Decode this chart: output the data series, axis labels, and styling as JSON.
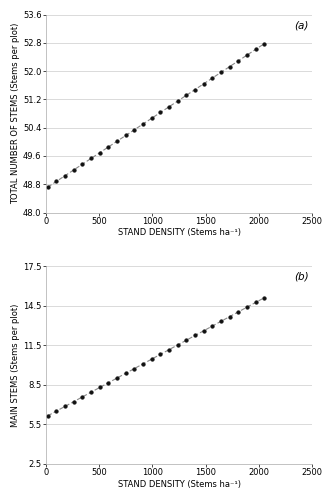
{
  "panel_a": {
    "label": "(a)",
    "x_min": 0,
    "x_max": 2500,
    "y_min": 48.0,
    "y_max": 53.6,
    "y_ticks": [
      48.0,
      48.8,
      49.6,
      50.4,
      51.2,
      52.0,
      52.8,
      53.6
    ],
    "x_ticks": [
      0,
      500,
      1000,
      1500,
      2000,
      2500
    ],
    "xlabel": "STAND DENSITY (Stems ha⁻¹)",
    "ylabel": "TOTAL NUMBER OF STEMS (Stems per plot)",
    "data_x_start": 20,
    "data_x_end": 2050,
    "data_y_start": 48.72,
    "data_y_end": 52.78,
    "n_points": 26
  },
  "panel_b": {
    "label": "(b)",
    "x_min": 0,
    "x_max": 2500,
    "y_min": 2.5,
    "y_max": 17.5,
    "y_ticks": [
      2.5,
      5.5,
      8.5,
      11.5,
      14.5,
      17.5
    ],
    "x_ticks": [
      0,
      500,
      1000,
      1500,
      2000,
      2500
    ],
    "xlabel": "STAND DENSITY (Stems ha⁻¹)",
    "ylabel": "MAIN STEMS (Stems per plot)",
    "data_x_start": 20,
    "data_x_end": 2050,
    "data_y_start": 6.15,
    "data_y_end": 15.1,
    "n_points": 26
  },
  "line_color": "#888888",
  "marker_color": "#111111",
  "bg_color": "#ffffff",
  "grid_color": "#cccccc",
  "label_fontsize": 6.0,
  "tick_fontsize": 6.0,
  "annot_fontsize": 7.5,
  "marker_size": 6,
  "linewidth": 0.8
}
